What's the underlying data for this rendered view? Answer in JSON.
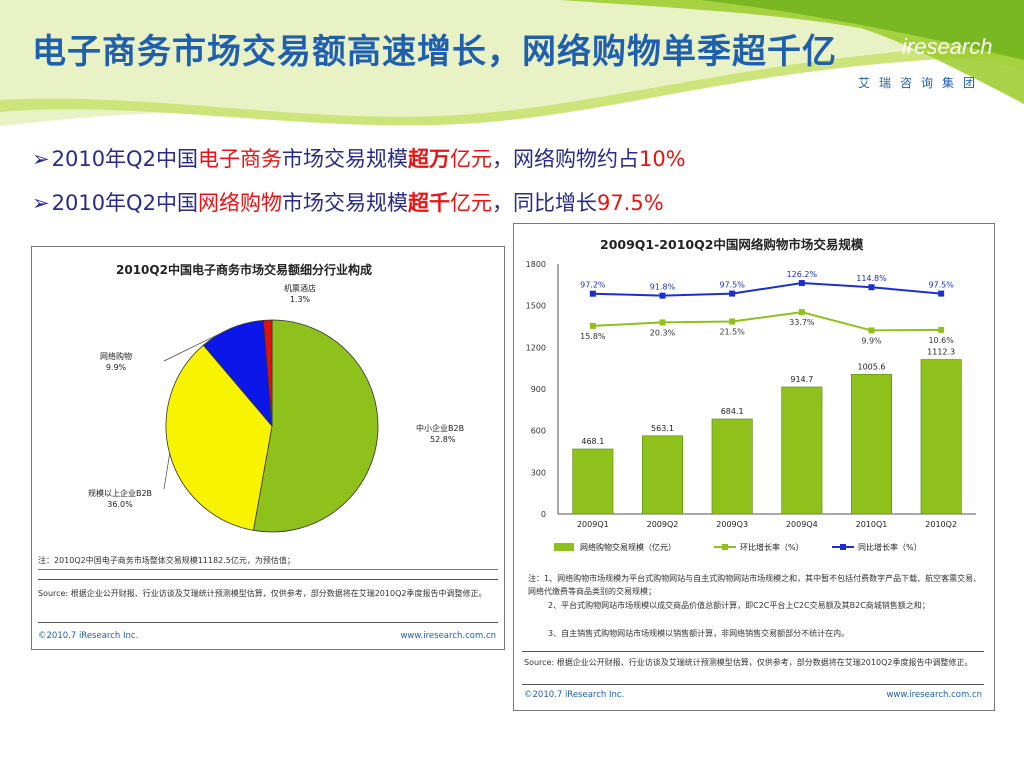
{
  "slide": {
    "title": "电子商务市场交易额高速增长，网络购物单季超千亿",
    "logo": "iresearch",
    "logo_sub": "艾瑞咨询集团",
    "bullets": [
      {
        "arrow": "➢",
        "p1": "2010年Q2中国",
        "p2": "电子商务",
        "p3": "市场交易规模",
        "p4": "超万",
        "p5": "亿元",
        "p6": "，网络购物约占",
        "p7": "10%"
      },
      {
        "arrow": "➢",
        "p1": "2010年Q2中国",
        "p2": "网络购物",
        "p3": "市场交易规模",
        "p4": "超千",
        "p5": "亿元",
        "p6": "，同比增长",
        "p7": "97.5%"
      }
    ]
  },
  "left_panel": {
    "title": "2010Q2中国电子商务市场交易额细分行业构成",
    "note": "注：2010Q2中国电子商务市场整体交易规模11182.5亿元，为预估值；",
    "source": "Source: 根据企业公开财报、行业访谈及艾瑞统计预测模型估算，仅供参考，部分数据将在艾瑞2010Q2季度报告中调整修正。",
    "copyright": "©2010.7 iResearch Inc.",
    "website": "www.iresearch.com.cn"
  },
  "right_panel": {
    "title": "2009Q1-2010Q2中国网络购物市场交易规模",
    "notes": [
      "注：1、网络购物市场规模为平台式购物网站与自主式购物网站市场规模之和，其中暂不包括付费数字产品下载、航空客票交易、网络代缴费等商品类别的交易规模；",
      "2、平台式购物网站市场规模以成交商品价值总额计算，即C2C平台上C2C交易额及其B2C商城销售额之和；",
      "3、自主销售式购物网站市场规模以销售额计算，非网络销售交易额部分不统计在内。"
    ],
    "source": "Source: 根据企业公开财报、行业访谈及艾瑞统计预测模型估算，仅供参考，部分数据将在艾瑞2010Q2季度报告中调整修正。",
    "copyright": "©2010.7 iResearch Inc.",
    "website": "www.iresearch.com.cn"
  },
  "chart_data": [
    {
      "type": "pie",
      "title": "2010Q2中国电子商务市场交易额细分行业构成",
      "slices": [
        {
          "label": "中小企业B2B",
          "value": 52.8,
          "display": "52.8%",
          "color": "#8ec11c"
        },
        {
          "label": "规模以上企业B2B",
          "value": 36.0,
          "display": "36.0%",
          "color": "#f8f400"
        },
        {
          "label": "网络购物",
          "value": 9.9,
          "display": "9.9%",
          "color": "#0b17e8"
        },
        {
          "label": "机票酒店",
          "value": 1.3,
          "display": "1.3%",
          "color": "#e01010"
        }
      ]
    },
    {
      "type": "bar",
      "title": "2009Q1-2010Q2中国网络购物市场交易规模",
      "categories": [
        "2009Q1",
        "2009Q2",
        "2009Q3",
        "2009Q4",
        "2010Q1",
        "2010Q2"
      ],
      "ylim": [
        0,
        1800
      ],
      "yticks": [
        0,
        300,
        600,
        900,
        1200,
        1500,
        1800
      ],
      "series": [
        {
          "name": "网络购物交易规模（亿元）",
          "kind": "bar",
          "color": "#8ec11c",
          "values": [
            468.1,
            563.1,
            684.1,
            914.7,
            1005.6,
            1112.3
          ]
        },
        {
          "name": "环比增长率（%）",
          "kind": "line",
          "color": "#8ec11c",
          "values": [
            15.8,
            20.3,
            21.5,
            33.7,
            9.9,
            10.6
          ],
          "labels": [
            "15.8%",
            "20.3%",
            "21.5%",
            "33.7%",
            "9.9%",
            "10.6%"
          ]
        },
        {
          "name": "同比增长率（%）",
          "kind": "line",
          "color": "#1a2fd0",
          "values": [
            97.2,
            91.8,
            97.5,
            126.2,
            114.8,
            97.5
          ],
          "labels": [
            "97.2%",
            "91.8%",
            "97.5%",
            "126.2%",
            "114.8%",
            "97.5%"
          ]
        }
      ]
    }
  ]
}
